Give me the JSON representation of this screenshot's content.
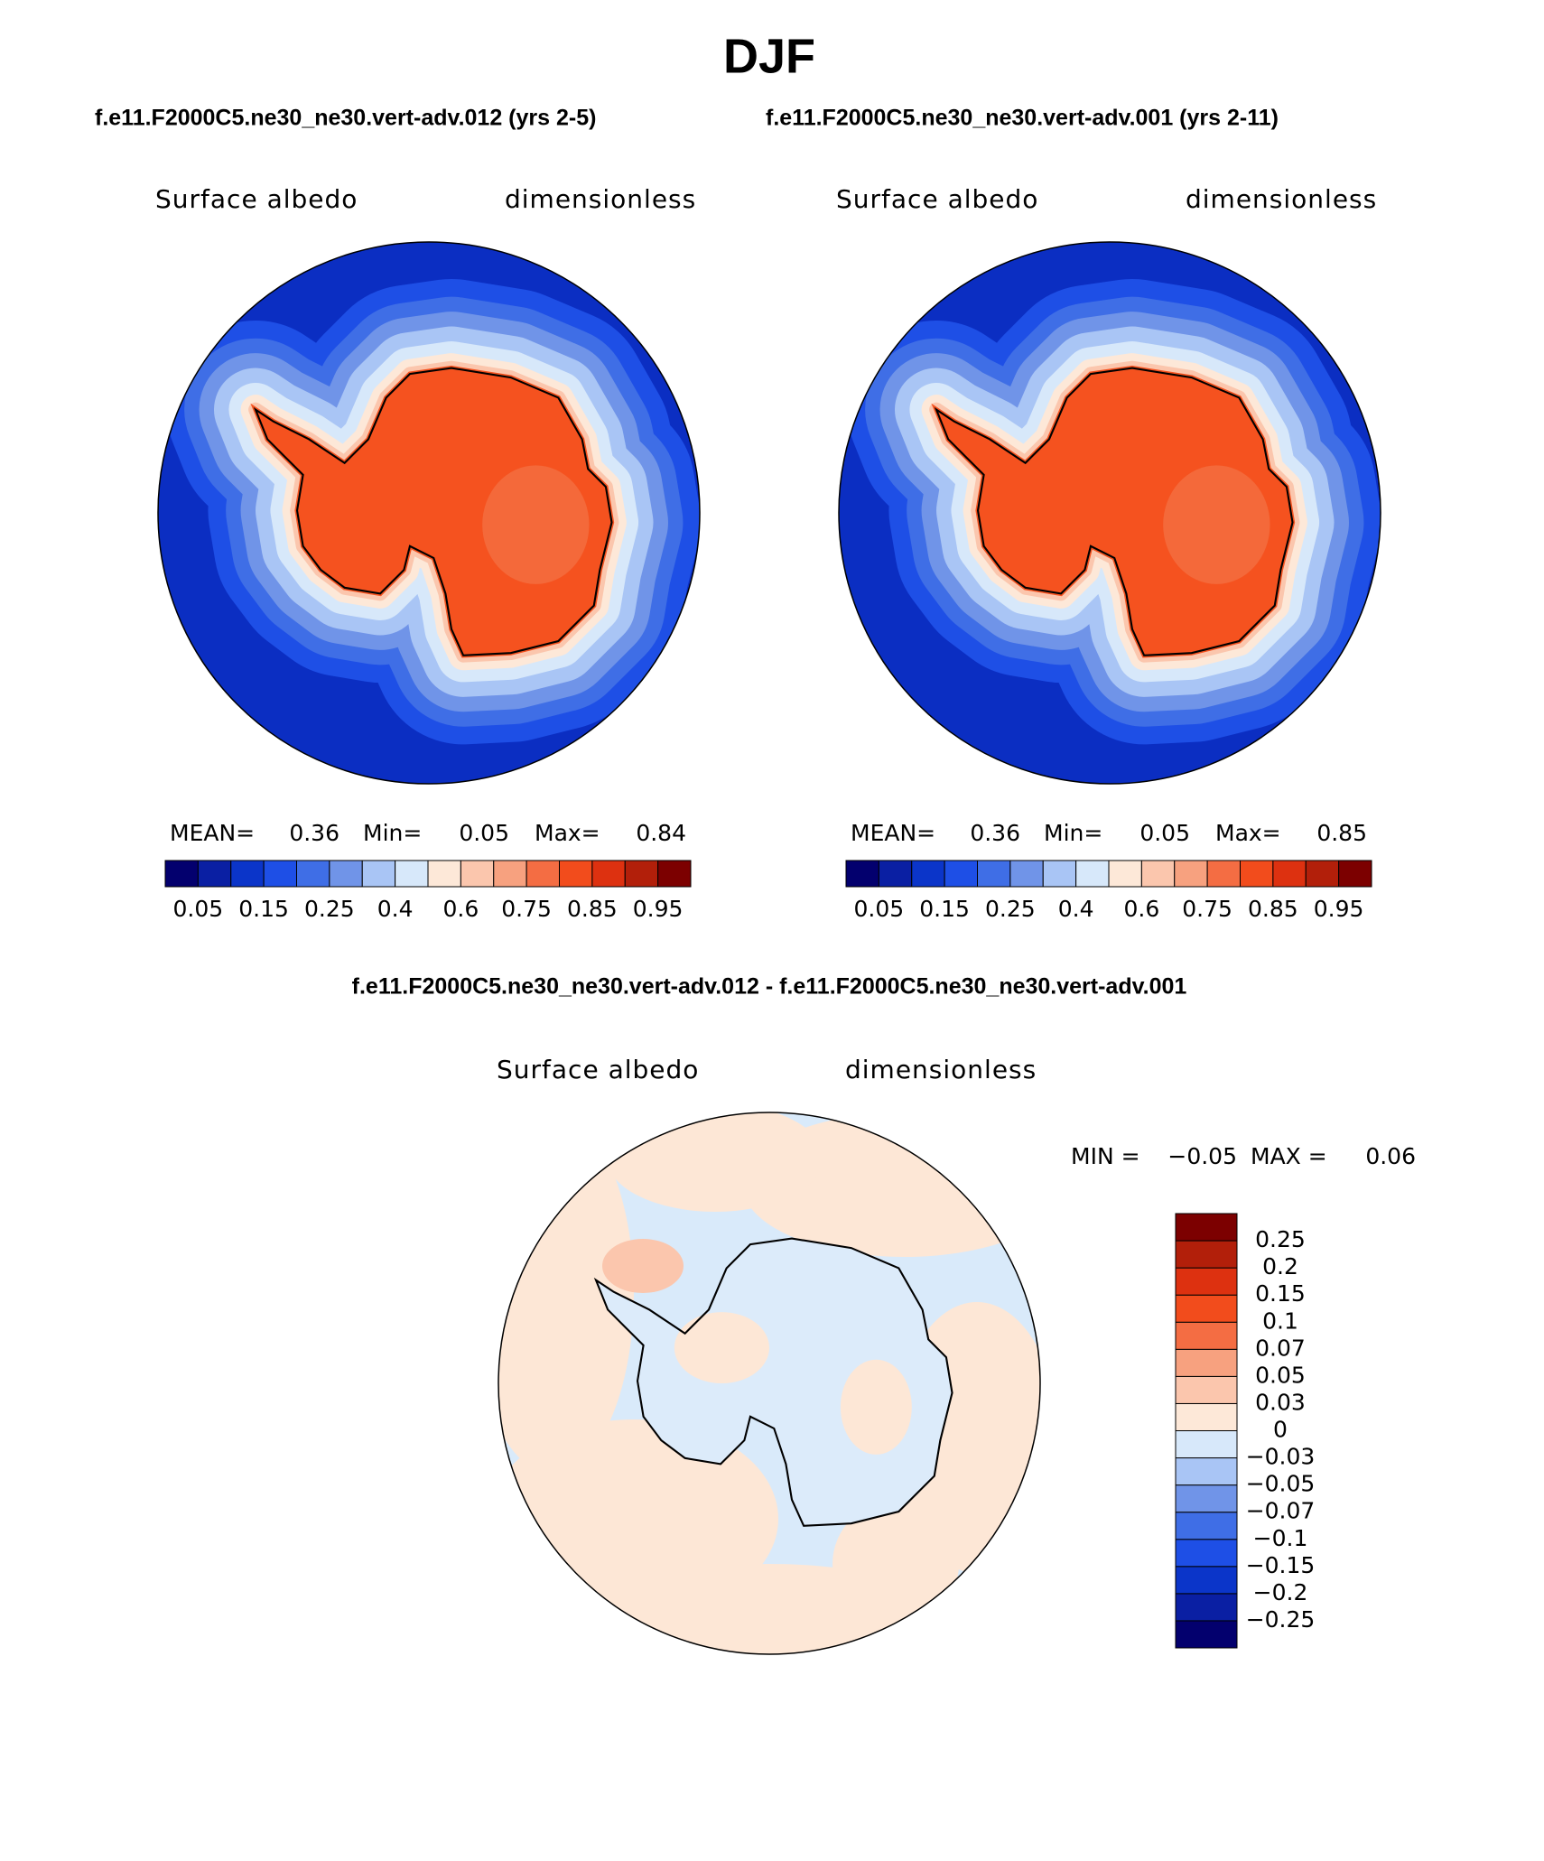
{
  "title": "DJF",
  "case_titles": [
    "f.e11.F2000C5.ne30_ne30.vert-adv.012 (yrs 2-5)",
    "f.e11.F2000C5.ne30_ne30.vert-adv.001 (yrs 2-11)"
  ],
  "panels": [
    {
      "left_label": "Surface albedo",
      "right_label": "dimensionless",
      "stats": [
        "MEAN=",
        "0.36",
        "Min=",
        "0.05",
        "Max=",
        "0.84"
      ]
    },
    {
      "left_label": "Surface albedo",
      "right_label": "dimensionless",
      "stats": [
        "MEAN=",
        "0.36",
        "Min=",
        "0.05",
        "Max=",
        "0.85"
      ]
    }
  ],
  "colorbar": {
    "colors": [
      "#03006e",
      "#0a1fa3",
      "#0b35c9",
      "#1e4fe6",
      "#3f6ee6",
      "#7094e8",
      "#a9c5f5",
      "#d7e8fa",
      "#fde8d8",
      "#fbc6ad",
      "#f7a17f",
      "#f46d43",
      "#f24c1c",
      "#dd3110",
      "#b21f0a",
      "#7c0000"
    ],
    "labels": [
      "0.05",
      "0.15",
      "0.25",
      "0.4",
      "0.6",
      "0.75",
      "0.85",
      "0.95"
    ]
  },
  "difference": {
    "title": "f.e11.F2000C5.ne30_ne30.vert-adv.012 - f.e11.F2000C5.ne30_ne30.vert-adv.001",
    "left_label": "Surface albedo",
    "right_label": "dimensionless",
    "stats": [
      "MIN =",
      "−0.05",
      "MAX =",
      "0.06"
    ],
    "colorbar_labels": [
      "0.25",
      "0.2",
      "0.15",
      "0.1",
      "0.07",
      "0.05",
      "0.03",
      "0",
      "−0.03",
      "−0.05",
      "−0.07",
      "−0.1",
      "−0.15",
      "−0.2",
      "−0.25"
    ]
  }
}
